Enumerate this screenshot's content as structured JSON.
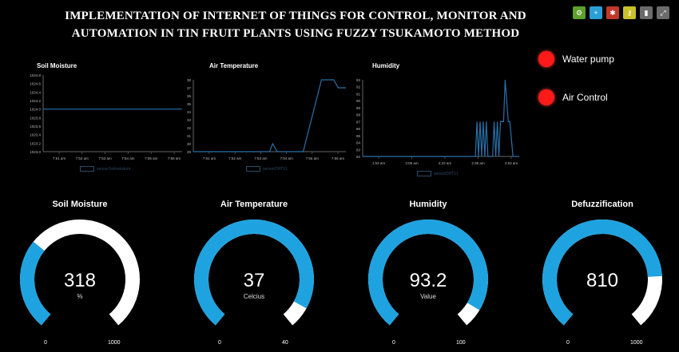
{
  "header": {
    "title_line1": "IMPLEMENTATION OF INTERNET OF THINGS FOR CONTROL, MONITOR AND",
    "title_line2": "AUTOMATION IN TIN FRUIT PLANTS USING FUZZY TSUKAMOTO METHOD"
  },
  "toolbar": {
    "buttons": [
      {
        "icon": "gear-icon",
        "color": "#5da02a",
        "glyph": "⚙"
      },
      {
        "icon": "plus-icon",
        "color": "#2a9fd6",
        "glyph": "+"
      },
      {
        "icon": "settings-icon",
        "color": "#c0392b",
        "glyph": "✱"
      },
      {
        "icon": "key-icon",
        "color": "#c9c12a",
        "glyph": "⚷"
      },
      {
        "icon": "lock-icon",
        "color": "#6b6b6b",
        "glyph": "▮"
      },
      {
        "icon": "fullscreen-icon",
        "color": "#6b6b6b",
        "glyph": "⤢"
      }
    ]
  },
  "status": {
    "water_pump": "Water pump",
    "air_control": "Air Control",
    "indicator_color": "#ff1a1a"
  },
  "charts": {
    "soil": {
      "title": "Soil Moisture"
    },
    "air": {
      "title": "Air Temperature"
    },
    "humidity": {
      "title": "Humidity"
    }
  },
  "chart_data": [
    {
      "type": "line",
      "title": "Soil Moisture",
      "y_ticks": [
        "1024.8",
        "1024.6",
        "1024.4",
        "1024.2",
        "1024.0",
        "1023.8",
        "1023.6",
        "1023.4",
        "1023.2",
        "1023.0"
      ],
      "x_ticks": [
        "7:51 am",
        "7:52 am",
        "7:53 am",
        "7:54 am",
        "7:55 am",
        "7:56 am"
      ],
      "ylim": [
        1023.0,
        1024.8
      ],
      "series": [
        {
          "name": "sensorSoilmoisture",
          "x": [
            0,
            1
          ],
          "values": [
            1024.0,
            1024.0
          ]
        }
      ]
    },
    {
      "type": "line",
      "title": "Air Temperature",
      "y_ticks": [
        "38",
        "37",
        "36",
        "35",
        "34",
        "33",
        "32",
        "31",
        "30",
        "29"
      ],
      "x_ticks": [
        "7:51 am",
        "7:52 am",
        "7:53 am",
        "7:54 am",
        "7:55 am",
        "7:56 am"
      ],
      "ylim": [
        29,
        38
      ],
      "series": [
        {
          "name": "sensorDHT11",
          "x": [
            0,
            0.5,
            0.52,
            0.55,
            0.72,
            0.84,
            0.88,
            0.92,
            0.95,
            1
          ],
          "values": [
            29,
            29,
            30,
            29,
            29,
            38,
            38,
            38,
            37,
            37
          ]
        }
      ]
    },
    {
      "type": "line",
      "title": "Humidity",
      "y_ticks": [
        "93",
        "92",
        "91",
        "90",
        "89",
        "88",
        "87",
        "86",
        "85",
        "84",
        "83",
        "82"
      ],
      "x_ticks": [
        "1:53 am",
        "2:08 am",
        "2:23 am",
        "2:38 am",
        "2:53 am"
      ],
      "ylim": [
        82,
        93
      ],
      "series": [
        {
          "name": "sensorDHT11",
          "x": [
            0,
            0.72,
            0.73,
            0.74,
            0.75,
            0.76,
            0.77,
            0.78,
            0.79,
            0.8,
            0.83,
            0.84,
            0.85,
            0.86,
            0.87,
            0.88,
            0.9,
            0.91,
            0.93,
            0.94,
            0.96,
            1
          ],
          "values": [
            82,
            82,
            87,
            82,
            87,
            82,
            87,
            82,
            87,
            82,
            82,
            87,
            82,
            87,
            82,
            87,
            87,
            93,
            87,
            87,
            82,
            82
          ]
        }
      ]
    }
  ],
  "gauges": [
    {
      "title": "Soil Moisture",
      "value": "318",
      "unit": "%",
      "min": "0",
      "max": "1000",
      "fraction": 0.318
    },
    {
      "title": "Air Temperature",
      "value": "37",
      "unit": "Celcius",
      "min": "0",
      "max": "40",
      "fraction": 0.925
    },
    {
      "title": "Humidity",
      "value": "93.2",
      "unit": "Value",
      "min": "0",
      "max": "100",
      "fraction": 0.932
    },
    {
      "title": "Defuzzification",
      "value": "810",
      "unit": "",
      "min": "0",
      "max": "1000",
      "fraction": 0.81
    }
  ],
  "colors": {
    "gauge_fill": "#1fa3e0",
    "gauge_track": "#ffffff",
    "line": "#2a6fa8",
    "axis": "#666666"
  }
}
